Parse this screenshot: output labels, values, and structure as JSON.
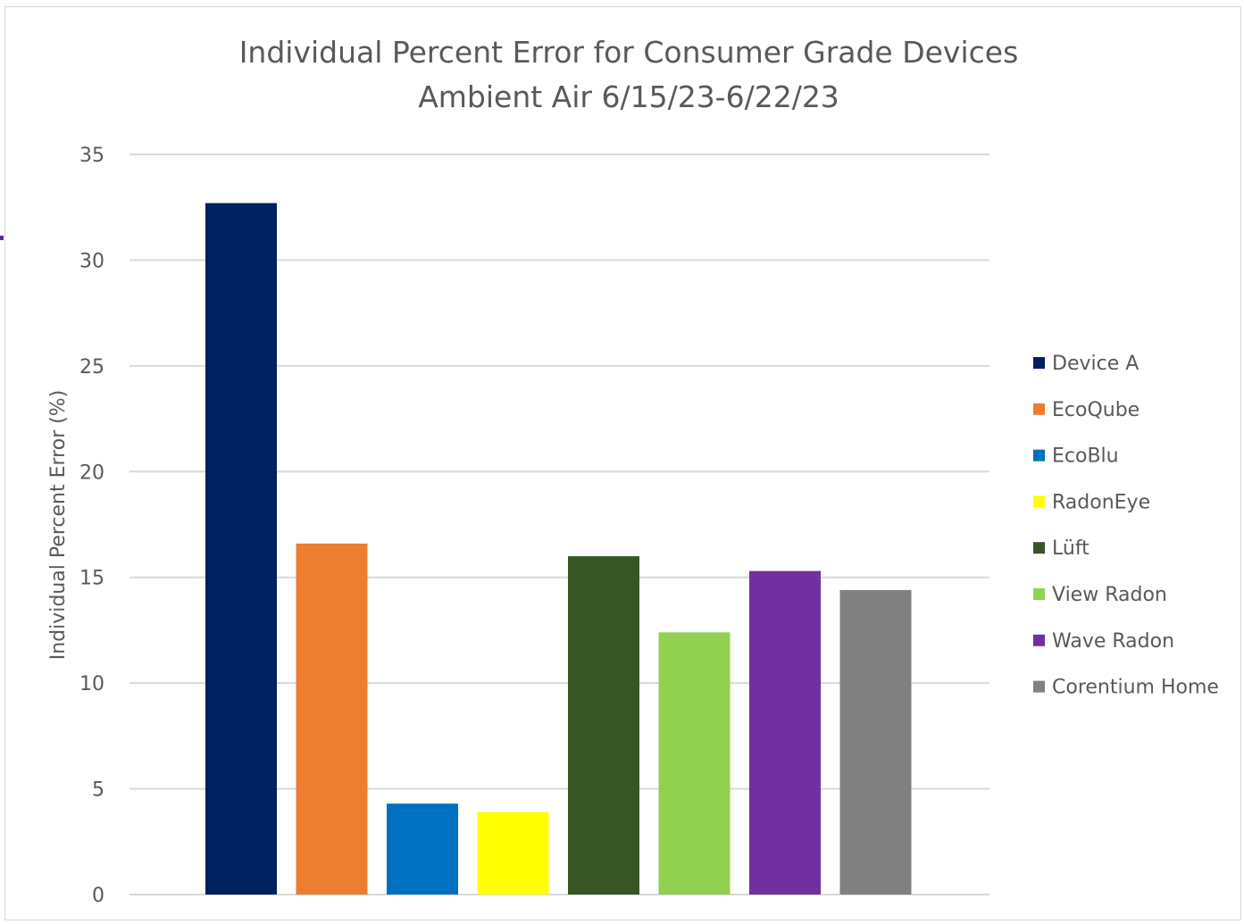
{
  "chart_data": {
    "type": "bar",
    "title": "Individual Percent Error for Consumer Grade Devices",
    "subtitle": "Ambient Air 6/15/23-6/22/23",
    "xlabel": "",
    "ylabel": "Individual Percent Error (%)",
    "ylim": [
      0,
      35
    ],
    "yticks": [
      "0",
      "5",
      "10",
      "15",
      "20",
      "25",
      "30",
      "35"
    ],
    "grid": true,
    "legend_position": "right",
    "series": [
      {
        "name": "Device A",
        "value": 32.7,
        "color": "#002060"
      },
      {
        "name": "EcoQube",
        "value": 16.6,
        "color": "#ed7d31"
      },
      {
        "name": "EcoBlu",
        "value": 4.3,
        "color": "#0070c0"
      },
      {
        "name": "RadonEye",
        "value": 3.9,
        "color": "#ffff00"
      },
      {
        "name": "Lüft",
        "value": 16.0,
        "color": "#375623"
      },
      {
        "name": "View Radon",
        "value": 12.4,
        "color": "#92d050"
      },
      {
        "name": "Wave Radon",
        "value": 15.3,
        "color": "#7030a0"
      },
      {
        "name": "Corentium Home",
        "value": 14.4,
        "color": "#808080"
      }
    ]
  }
}
